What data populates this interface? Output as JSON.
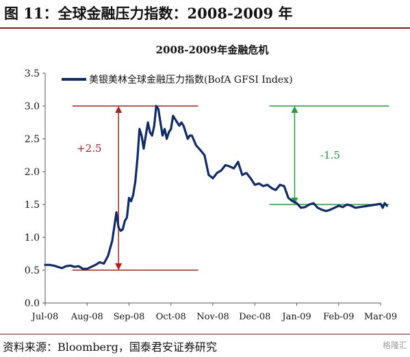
{
  "figure_title": "图 11：全球金融压力指数：2008-2009 年",
  "source_text": "资料来源：Bloomberg，国泰君安证券研究",
  "watermark_text": "格隆汇",
  "colors": {
    "line": "#0d2a6b",
    "up": "#b41e1e",
    "down": "#1ea03c",
    "rule": "#8b1a1a"
  },
  "chart_data": {
    "type": "line",
    "title": "2008-2009年金融危机",
    "legend_position": "top",
    "grid": false,
    "ylim": [
      0,
      3.5
    ],
    "yticks": [
      "0.0",
      "0.5",
      "1.0",
      "1.5",
      "2.0",
      "2.5",
      "3.0",
      "3.5"
    ],
    "xticks": [
      "Jul-08",
      "Aug-08",
      "Sep-08",
      "Oct-08",
      "Nov-08",
      "Dec-08",
      "Jan-09",
      "Feb-09",
      "Mar-09"
    ],
    "series": [
      {
        "name": "美银美林全球金融压力指数(BofA GFSI Index)",
        "x": [
          0,
          0.1,
          0.2,
          0.3,
          0.4,
          0.5,
          0.6,
          0.7,
          0.8,
          0.9,
          1.0,
          1.1,
          1.2,
          1.3,
          1.4,
          1.5,
          1.6,
          1.7,
          1.75,
          1.8,
          1.85,
          1.9,
          1.95,
          2.0,
          2.05,
          2.1,
          2.15,
          2.2,
          2.25,
          2.3,
          2.35,
          2.4,
          2.45,
          2.5,
          2.55,
          2.6,
          2.65,
          2.7,
          2.75,
          2.8,
          2.85,
          2.9,
          2.95,
          3.0,
          3.05,
          3.1,
          3.15,
          3.2,
          3.25,
          3.3,
          3.35,
          3.4,
          3.45,
          3.5,
          3.6,
          3.7,
          3.8,
          3.9,
          4.0,
          4.1,
          4.2,
          4.3,
          4.4,
          4.5,
          4.6,
          4.7,
          4.8,
          4.9,
          5.0,
          5.1,
          5.2,
          5.3,
          5.4,
          5.5,
          5.6,
          5.7,
          5.8,
          5.9,
          6.0,
          6.1,
          6.2,
          6.3,
          6.4,
          6.5,
          6.6,
          6.7,
          6.8,
          6.9,
          7.0,
          7.1,
          7.2,
          7.3,
          7.4,
          7.5,
          7.6,
          7.7,
          7.8,
          7.9,
          8.0,
          8.05,
          8.1,
          8.15
        ],
        "y": [
          0.58,
          0.58,
          0.57,
          0.55,
          0.53,
          0.56,
          0.57,
          0.55,
          0.56,
          0.52,
          0.52,
          0.55,
          0.58,
          0.62,
          0.6,
          0.72,
          0.95,
          1.38,
          1.15,
          1.1,
          1.12,
          1.25,
          1.3,
          1.6,
          1.55,
          1.65,
          1.85,
          2.2,
          2.65,
          2.55,
          2.35,
          2.55,
          2.75,
          2.6,
          2.55,
          2.7,
          3.0,
          2.95,
          2.75,
          2.55,
          2.65,
          2.5,
          2.6,
          2.65,
          2.85,
          2.8,
          2.75,
          2.7,
          2.75,
          2.7,
          2.6,
          2.5,
          2.55,
          2.55,
          2.4,
          2.33,
          2.25,
          1.95,
          1.9,
          1.98,
          2.02,
          2.1,
          2.08,
          2.05,
          2.15,
          1.95,
          1.98,
          1.9,
          1.8,
          1.82,
          1.78,
          1.8,
          1.75,
          1.72,
          1.8,
          1.78,
          1.6,
          1.55,
          1.52,
          1.45,
          1.46,
          1.5,
          1.52,
          1.45,
          1.42,
          1.4,
          1.42,
          1.45,
          1.48,
          1.46,
          1.5,
          1.48,
          1.45,
          1.46,
          1.47,
          1.48,
          1.49,
          1.5,
          1.51,
          1.45,
          1.52,
          1.48
        ]
      }
    ],
    "annotations": [
      {
        "label": "+2.5",
        "from": 0.5,
        "to": 3.0,
        "direction": "up"
      },
      {
        "label": "-1.5",
        "from": 3.0,
        "to": 1.5,
        "direction": "down"
      }
    ]
  }
}
